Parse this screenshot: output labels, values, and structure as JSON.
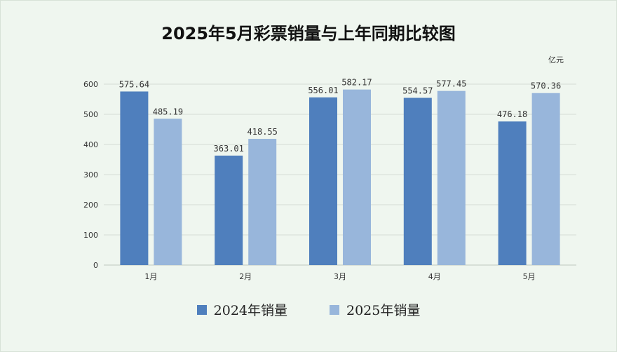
{
  "chart_data": {
    "type": "bar",
    "title": "2025年5月彩票销量与上年同期比较图",
    "unit_label": "亿元",
    "categories": [
      "1月",
      "2月",
      "3月",
      "4月",
      "5月"
    ],
    "series": [
      {
        "name": "2024年销量",
        "values": [
          575.64,
          363.01,
          556.01,
          554.57,
          476.18
        ],
        "labels": [
          "575.64",
          "363.01",
          "556.01",
          "554.57",
          "476.18"
        ],
        "color": "#4f7fbd"
      },
      {
        "name": "2025年销量",
        "values": [
          485.19,
          418.55,
          582.17,
          577.45,
          570.36
        ],
        "labels": [
          "485.19",
          "418.55",
          "582.17",
          "577.45",
          "570.36"
        ],
        "color": "#98b6db"
      }
    ],
    "yticks": [
      "0",
      "100",
      "200",
      "300",
      "400",
      "500",
      "600"
    ],
    "ylim": [
      0,
      600
    ],
    "grid": true,
    "legend": "bottom"
  }
}
